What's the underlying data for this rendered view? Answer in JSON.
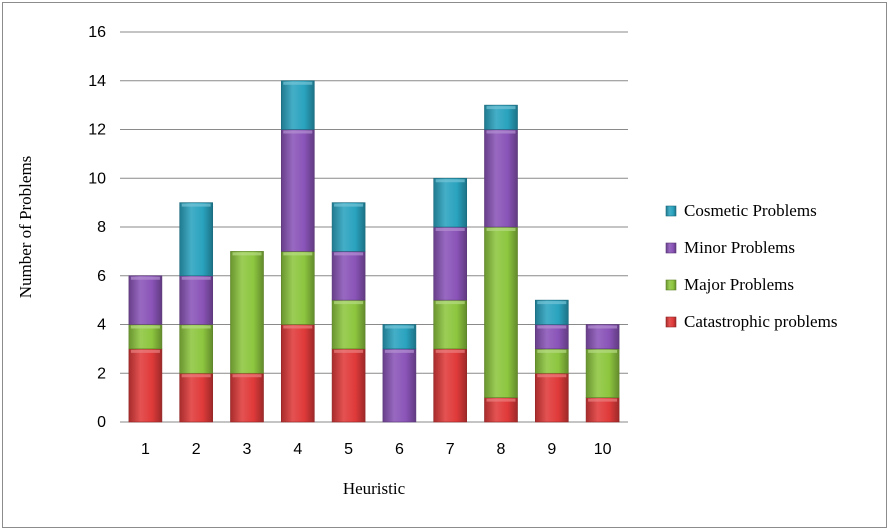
{
  "chart_data": {
    "type": "bar",
    "stacked": true,
    "categories": [
      "1",
      "2",
      "3",
      "4",
      "5",
      "6",
      "7",
      "8",
      "9",
      "10"
    ],
    "series": [
      {
        "name": "Catastrophic problems",
        "color": "#e03a3a",
        "values": [
          3,
          2,
          2,
          4,
          3,
          0,
          3,
          1,
          2,
          1
        ]
      },
      {
        "name": "Major Problems",
        "color": "#8dc63f",
        "values": [
          1,
          2,
          5,
          3,
          2,
          0,
          2,
          7,
          1,
          2
        ]
      },
      {
        "name": "Minor Problems",
        "color": "#8a54b8",
        "values": [
          2,
          2,
          0,
          5,
          2,
          3,
          3,
          4,
          1,
          1
        ]
      },
      {
        "name": "Cosmetic Problems",
        "color": "#2aa3bf",
        "values": [
          0,
          3,
          0,
          2,
          2,
          1,
          2,
          1,
          1,
          0
        ]
      }
    ],
    "xlabel": "Heuristic",
    "ylabel": "Number of Problems",
    "ylim": [
      0,
      16
    ],
    "yticks": [
      "0",
      "2",
      "4",
      "6",
      "8",
      "10",
      "12",
      "14",
      "16"
    ],
    "grid": true,
    "legend_position": "right"
  }
}
